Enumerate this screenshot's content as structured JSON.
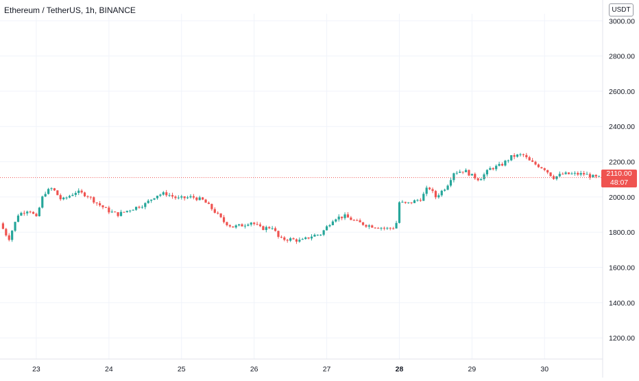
{
  "header": {
    "title": "Ethereum / TetherUS, 1h, BINANCE"
  },
  "y_axis": {
    "currency": "USDT"
  },
  "last_price": {
    "value": "2110.00",
    "countdown": "48:07",
    "color": "#ef5350"
  },
  "colors": {
    "up": "#26a69a",
    "down": "#ef5350",
    "grid": "#f0f3fa",
    "axis_text": "#131722"
  },
  "chart_data": {
    "type": "candlestick",
    "title": "Ethereum / TetherUS, 1h, BINANCE",
    "ylim": [
      1080,
      3040
    ],
    "y_ticks": [
      "1200.00",
      "1400.00",
      "1600.00",
      "1800.00",
      "2000.00",
      "2200.00",
      "2400.00",
      "2600.00",
      "2800.00",
      "3000.00"
    ],
    "x_range": [
      22.5,
      30.8
    ],
    "x_ticks": [
      {
        "label": "23",
        "day": 23,
        "bold": false
      },
      {
        "label": "24",
        "day": 24,
        "bold": false
      },
      {
        "label": "25",
        "day": 25,
        "bold": false
      },
      {
        "label": "26",
        "day": 26,
        "bold": false
      },
      {
        "label": "27",
        "day": 27,
        "bold": false
      },
      {
        "label": "28",
        "day": 28,
        "bold": true
      },
      {
        "label": "29",
        "day": 29,
        "bold": false
      },
      {
        "label": "30",
        "day": 30,
        "bold": false
      }
    ],
    "grid": true,
    "last_price_line": 2110,
    "candle_interval": "1h",
    "close_path_day_price": [
      [
        22.5,
        1850
      ],
      [
        22.62,
        1760
      ],
      [
        22.75,
        1900
      ],
      [
        22.9,
        1930
      ],
      [
        23.0,
        1880
      ],
      [
        23.1,
        2020
      ],
      [
        23.22,
        2050
      ],
      [
        23.35,
        1980
      ],
      [
        23.55,
        2030
      ],
      [
        23.7,
        2010
      ],
      [
        23.85,
        1960
      ],
      [
        24.0,
        1920
      ],
      [
        24.12,
        1900
      ],
      [
        24.3,
        1930
      ],
      [
        24.5,
        1960
      ],
      [
        24.65,
        2010
      ],
      [
        24.78,
        2020
      ],
      [
        24.95,
        1990
      ],
      [
        25.15,
        2000
      ],
      [
        25.3,
        1980
      ],
      [
        25.45,
        1920
      ],
      [
        25.58,
        1860
      ],
      [
        25.7,
        1830
      ],
      [
        25.85,
        1840
      ],
      [
        25.95,
        1860
      ],
      [
        26.1,
        1820
      ],
      [
        26.25,
        1830
      ],
      [
        26.35,
        1760
      ],
      [
        26.5,
        1760
      ],
      [
        26.65,
        1750
      ],
      [
        26.8,
        1780
      ],
      [
        26.92,
        1790
      ],
      [
        27.0,
        1830
      ],
      [
        27.1,
        1880
      ],
      [
        27.25,
        1890
      ],
      [
        27.4,
        1860
      ],
      [
        27.55,
        1840
      ],
      [
        27.7,
        1830
      ],
      [
        27.85,
        1820
      ],
      [
        27.95,
        1830
      ],
      [
        28.0,
        1970
      ],
      [
        28.1,
        1960
      ],
      [
        28.3,
        1990
      ],
      [
        28.4,
        2060
      ],
      [
        28.5,
        2000
      ],
      [
        28.65,
        2060
      ],
      [
        28.75,
        2140
      ],
      [
        28.9,
        2150
      ],
      [
        29.0,
        2120
      ],
      [
        29.1,
        2100
      ],
      [
        29.25,
        2160
      ],
      [
        29.4,
        2180
      ],
      [
        29.55,
        2230
      ],
      [
        29.7,
        2240
      ],
      [
        29.8,
        2200
      ],
      [
        29.9,
        2180
      ],
      [
        30.0,
        2160
      ],
      [
        30.12,
        2110
      ],
      [
        30.25,
        2130
      ],
      [
        30.4,
        2130
      ],
      [
        30.55,
        2130
      ],
      [
        30.7,
        2110
      ]
    ]
  }
}
